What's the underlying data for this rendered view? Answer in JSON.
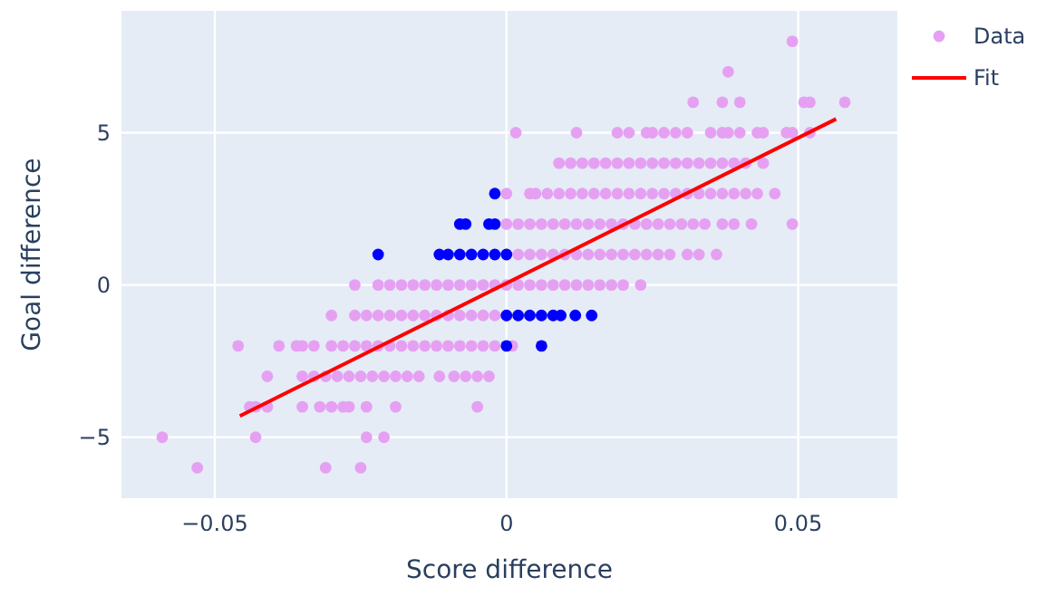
{
  "chart_data": {
    "type": "scatter",
    "xlabel": "Score difference",
    "ylabel": "Goal difference",
    "xlim": [
      -0.066,
      0.067
    ],
    "ylim": [
      -7,
      9
    ],
    "xticks": [
      {
        "value": -0.05,
        "label": "−0.05"
      },
      0,
      0.05
    ],
    "yticks": [
      {
        "value": -5,
        "label": "−5"
      },
      0,
      5
    ],
    "grid": true,
    "legend": "top right",
    "series": [
      {
        "name": "Data",
        "marker": "circle",
        "color": "#e6a0f2",
        "x": [
          0.049,
          0.038,
          0.032,
          0.037,
          0.04,
          0.051,
          0.052,
          0.058,
          0.0016,
          0.012,
          0.019,
          0.021,
          0.024,
          0.025,
          0.027,
          0.029,
          0.031,
          0.035,
          0.037,
          0.038,
          0.04,
          0.043,
          0.044,
          0.048,
          0.049,
          0.052,
          0.009,
          0.011,
          0.013,
          0.015,
          0.017,
          0.019,
          0.021,
          0.023,
          0.025,
          0.027,
          0.029,
          0.031,
          0.033,
          0.035,
          0.037,
          0.039,
          0.041,
          0.044,
          0,
          0.004,
          0.005,
          0.007,
          0.009,
          0.011,
          0.013,
          0.015,
          0.017,
          0.019,
          0.021,
          0.023,
          0.025,
          0.027,
          0.029,
          0.031,
          0.033,
          0.035,
          0.037,
          0.039,
          0.041,
          0.043,
          0.046,
          0,
          0.002,
          0.004,
          0.006,
          0.008,
          0.01,
          0.012,
          0.014,
          0.016,
          0.018,
          0.02,
          0.022,
          0.024,
          0.026,
          0.028,
          0.03,
          0.032,
          0.034,
          0.037,
          0.039,
          0.042,
          0.049,
          0,
          0.002,
          0.004,
          0.006,
          0.008,
          0.01,
          0.012,
          0.014,
          0.016,
          0.018,
          0.02,
          0.022,
          0.024,
          0.026,
          0.028,
          0.031,
          0.033,
          0.036,
          -0.026,
          -0.022,
          -0.02,
          -0.018,
          -0.016,
          -0.014,
          -0.012,
          -0.01,
          -0.008,
          -0.006,
          -0.004,
          -0.002,
          0,
          0.002,
          0.004,
          0.006,
          0.008,
          0.01,
          0.012,
          0.014,
          0.016,
          0.018,
          0.02,
          0.023,
          -0.03,
          -0.026,
          -0.024,
          -0.022,
          -0.02,
          -0.018,
          -0.016,
          -0.014,
          -0.012,
          -0.01,
          -0.008,
          -0.006,
          -0.004,
          -0.002,
          0,
          -0.046,
          -0.039,
          -0.036,
          -0.035,
          -0.033,
          -0.03,
          -0.028,
          -0.026,
          -0.024,
          -0.022,
          -0.02,
          -0.018,
          -0.016,
          -0.014,
          -0.012,
          -0.01,
          -0.008,
          -0.006,
          -0.004,
          -0.002,
          0.001,
          -0.041,
          -0.035,
          -0.033,
          -0.031,
          -0.029,
          -0.027,
          -0.025,
          -0.023,
          -0.021,
          -0.019,
          -0.017,
          -0.015,
          -0.0115,
          -0.009,
          -0.007,
          -0.005,
          -0.003,
          -0.044,
          -0.043,
          -0.041,
          -0.035,
          -0.032,
          -0.03,
          -0.028,
          -0.027,
          -0.024,
          -0.019,
          -0.005,
          -0.059,
          -0.043,
          -0.024,
          -0.021,
          -0.053,
          -0.031,
          -0.025
        ],
        "values": [
          8,
          7,
          6,
          6,
          6,
          6,
          6,
          6,
          5,
          5,
          5,
          5,
          5,
          5,
          5,
          5,
          5,
          5,
          5,
          5,
          5,
          5,
          5,
          5,
          5,
          5,
          4,
          4,
          4,
          4,
          4,
          4,
          4,
          4,
          4,
          4,
          4,
          4,
          4,
          4,
          4,
          4,
          4,
          4,
          3,
          3,
          3,
          3,
          3,
          3,
          3,
          3,
          3,
          3,
          3,
          3,
          3,
          3,
          3,
          3,
          3,
          3,
          3,
          3,
          3,
          3,
          3,
          2,
          2,
          2,
          2,
          2,
          2,
          2,
          2,
          2,
          2,
          2,
          2,
          2,
          2,
          2,
          2,
          2,
          2,
          2,
          2,
          2,
          2,
          1,
          1,
          1,
          1,
          1,
          1,
          1,
          1,
          1,
          1,
          1,
          1,
          1,
          1,
          1,
          1,
          1,
          1,
          0,
          0,
          0,
          0,
          0,
          0,
          0,
          0,
          0,
          0,
          0,
          0,
          0,
          0,
          0,
          0,
          0,
          0,
          0,
          0,
          0,
          0,
          0,
          0,
          -1,
          -1,
          -1,
          -1,
          -1,
          -1,
          -1,
          -1,
          -1,
          -1,
          -1,
          -1,
          -1,
          -1,
          -1,
          -2,
          -2,
          -2,
          -2,
          -2,
          -2,
          -2,
          -2,
          -2,
          -2,
          -2,
          -2,
          -2,
          -2,
          -2,
          -2,
          -2,
          -2,
          -2,
          -2,
          -2,
          -3,
          -3,
          -3,
          -3,
          -3,
          -3,
          -3,
          -3,
          -3,
          -3,
          -3,
          -3,
          -3,
          -3,
          -3,
          -3,
          -3,
          -4,
          -4,
          -4,
          -4,
          -4,
          -4,
          -4,
          -4,
          -4,
          -4,
          -4,
          -5,
          -5,
          -5,
          -5,
          -6,
          -6,
          -6
        ]
      },
      {
        "marker": "circle",
        "color": "#0000ff",
        "x": [
          -0.002,
          -0.008,
          -0.007,
          -0.003,
          -0.002,
          -0.022,
          -0.0115,
          -0.01,
          -0.008,
          -0.006,
          -0.004,
          -0.002,
          0,
          0,
          0.002,
          0.004,
          0.006,
          0.008,
          0.0093,
          0.0118,
          0.0146,
          0,
          0.006
        ],
        "values": [
          3,
          2,
          2,
          2,
          2,
          1,
          1,
          1,
          1,
          1,
          1,
          1,
          1,
          -1,
          -1,
          -1,
          -1,
          -1,
          -1,
          -1,
          -1,
          -2,
          -2
        ]
      },
      {
        "name": "Fit",
        "type": "line",
        "marker": "none",
        "color": "#ff0000",
        "x": [
          -0.0457,
          0.0565
        ],
        "values": [
          -4.3,
          5.45
        ]
      }
    ]
  }
}
